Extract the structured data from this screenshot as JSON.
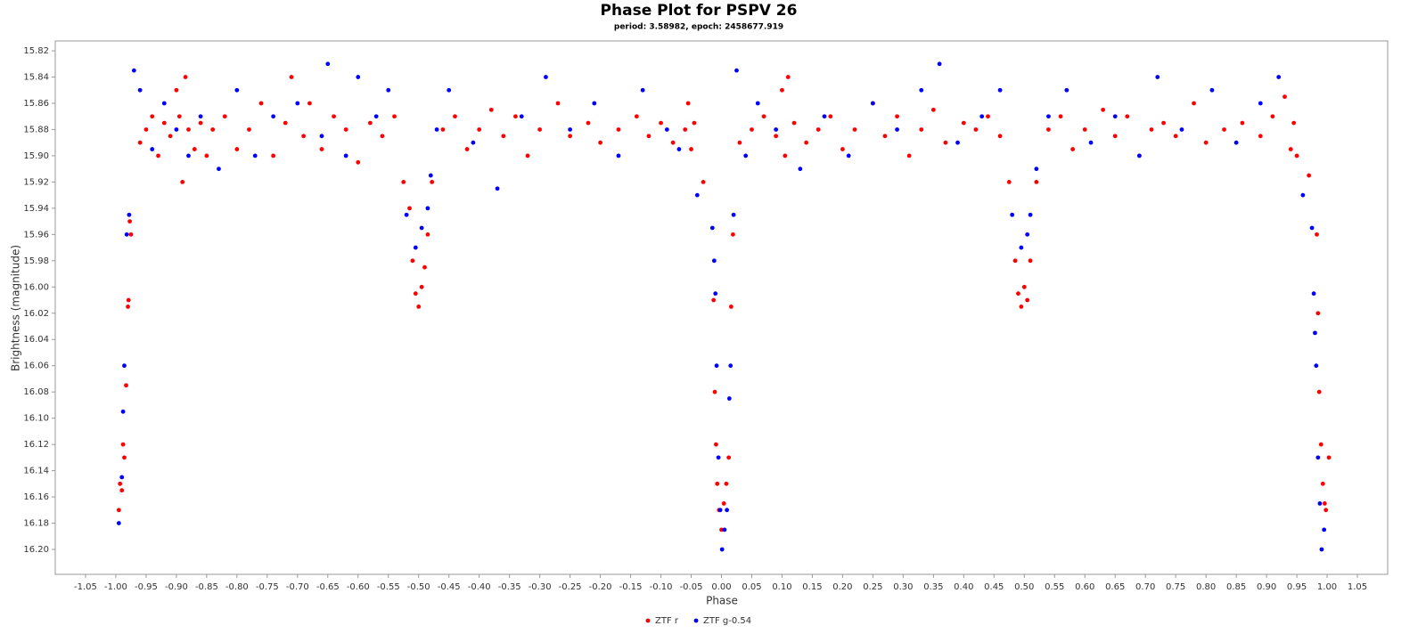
{
  "chart_data": {
    "type": "scatter",
    "title": "Phase Plot for PSPV 26",
    "subtitle": "period: 3.58982, epoch: 2458677.919",
    "x_label": "Phase",
    "y_label": "Brightness (magnitude)",
    "xlim": [
      -1.1,
      1.1
    ],
    "ylim": [
      15.8125,
      16.219
    ],
    "y_inverted": true,
    "grid": false,
    "legend": "bottom",
    "xticks": [
      -1.05,
      {
        "value": -1.0,
        "label": "-1.00"
      },
      -0.95,
      {
        "value": -0.9,
        "label": "-0.90"
      },
      -0.85,
      {
        "value": -0.8,
        "label": "-0.80"
      },
      -0.75,
      {
        "value": -0.7,
        "label": "-0.70"
      },
      -0.65,
      {
        "value": -0.6,
        "label": "-0.60"
      },
      -0.55,
      {
        "value": -0.5,
        "label": "-0.50"
      },
      -0.45,
      {
        "value": -0.4,
        "label": "-0.40"
      },
      -0.35,
      {
        "value": -0.3,
        "label": "-0.30"
      },
      -0.25,
      {
        "value": -0.2,
        "label": "-0.20"
      },
      -0.15,
      {
        "value": -0.1,
        "label": "-0.10"
      },
      -0.05,
      {
        "value": 0,
        "label": "0.00"
      },
      0.05,
      {
        "value": 0.1,
        "label": "0.10"
      },
      0.15,
      {
        "value": 0.2,
        "label": "0.20"
      },
      0.25,
      {
        "value": 0.3,
        "label": "0.30"
      },
      0.35,
      {
        "value": 0.4,
        "label": "0.40"
      },
      0.45,
      {
        "value": 0.5,
        "label": "0.50"
      },
      0.55,
      {
        "value": 0.6,
        "label": "0.60"
      },
      0.65,
      {
        "value": 0.7,
        "label": "0.70"
      },
      0.75,
      {
        "value": 0.8,
        "label": "0.80"
      },
      0.85,
      {
        "value": 0.9,
        "label": "0.90"
      },
      0.95,
      {
        "value": 1.0,
        "label": "1.00"
      },
      1.05
    ],
    "yticks": [
      15.82,
      15.84,
      15.86,
      15.88,
      {
        "value": 15.9,
        "label": "15.90"
      },
      15.92,
      15.94,
      15.96,
      15.98,
      {
        "value": 16.0,
        "label": "16.00"
      },
      16.02,
      16.04,
      16.06,
      16.08,
      {
        "value": 16.1,
        "label": "16.10"
      },
      16.12,
      16.14,
      16.16,
      16.18,
      {
        "value": 16.2,
        "label": "16.20"
      }
    ],
    "series": [
      {
        "name": "ZTF r",
        "color": "#ff0000",
        "x": [
          -0.995,
          -0.993,
          -0.99,
          -0.988,
          -0.986,
          -0.983,
          -0.98,
          -0.979,
          -0.977,
          -0.975,
          -0.96,
          -0.95,
          -0.94,
          -0.93,
          -0.92,
          -0.91,
          -0.9,
          -0.895,
          -0.89,
          -0.885,
          -0.88,
          -0.87,
          -0.86,
          -0.85,
          -0.84,
          -0.82,
          -0.8,
          -0.78,
          -0.76,
          -0.74,
          -0.72,
          -0.71,
          -0.69,
          -0.68,
          -0.66,
          -0.64,
          -0.62,
          -0.6,
          -0.58,
          -0.56,
          -0.54,
          -0.525,
          -0.515,
          -0.51,
          -0.505,
          -0.5,
          -0.495,
          -0.49,
          -0.485,
          -0.478,
          -0.46,
          -0.44,
          -0.42,
          -0.4,
          -0.38,
          -0.36,
          -0.34,
          -0.32,
          -0.3,
          -0.27,
          -0.25,
          -0.22,
          -0.2,
          -0.17,
          -0.14,
          -0.12,
          -0.1,
          -0.08,
          -0.06,
          -0.055,
          -0.05,
          -0.045,
          -0.03,
          -0.013,
          -0.011,
          -0.009,
          -0.007,
          -0.004,
          0,
          0.004,
          0.008,
          0.012,
          0.016,
          0.019,
          0.03,
          0.05,
          0.07,
          0.09,
          0.1,
          0.105,
          0.11,
          0.12,
          0.14,
          0.16,
          0.18,
          0.2,
          0.22,
          0.25,
          0.27,
          0.29,
          0.31,
          0.33,
          0.35,
          0.37,
          0.4,
          0.42,
          0.44,
          0.46,
          0.475,
          0.485,
          0.49,
          0.495,
          0.5,
          0.505,
          0.51,
          0.52,
          0.54,
          0.56,
          0.58,
          0.6,
          0.63,
          0.65,
          0.67,
          0.69,
          0.71,
          0.73,
          0.75,
          0.78,
          0.8,
          0.83,
          0.86,
          0.89,
          0.91,
          0.93,
          0.94,
          0.945,
          0.95,
          0.97,
          0.983,
          0.985,
          0.987,
          0.99,
          0.993,
          0.996,
          0.998,
          1.003
        ],
        "y": [
          16.17,
          16.15,
          16.155,
          16.12,
          16.13,
          16.075,
          16.015,
          16.01,
          15.95,
          15.96,
          15.89,
          15.88,
          15.87,
          15.9,
          15.875,
          15.885,
          15.85,
          15.87,
          15.92,
          15.84,
          15.88,
          15.895,
          15.875,
          15.9,
          15.88,
          15.87,
          15.895,
          15.88,
          15.86,
          15.9,
          15.875,
          15.84,
          15.885,
          15.86,
          15.895,
          15.87,
          15.88,
          15.905,
          15.875,
          15.885,
          15.87,
          15.92,
          15.94,
          15.98,
          16.005,
          16.015,
          16.0,
          15.985,
          15.96,
          15.92,
          15.88,
          15.87,
          15.895,
          15.88,
          15.865,
          15.885,
          15.87,
          15.9,
          15.88,
          15.86,
          15.885,
          15.875,
          15.89,
          15.88,
          15.87,
          15.885,
          15.875,
          15.89,
          15.88,
          15.86,
          15.895,
          15.875,
          15.92,
          16.01,
          16.08,
          16.12,
          16.15,
          16.17,
          16.185,
          16.165,
          16.15,
          16.13,
          16.015,
          15.96,
          15.89,
          15.88,
          15.87,
          15.885,
          15.85,
          15.9,
          15.84,
          15.875,
          15.89,
          15.88,
          15.87,
          15.895,
          15.88,
          15.86,
          15.885,
          15.87,
          15.9,
          15.88,
          15.865,
          15.89,
          15.875,
          15.88,
          15.87,
          15.885,
          15.92,
          15.98,
          16.005,
          16.015,
          16.0,
          16.01,
          15.98,
          15.92,
          15.88,
          15.87,
          15.895,
          15.88,
          15.865,
          15.885,
          15.87,
          15.9,
          15.88,
          15.875,
          15.885,
          15.86,
          15.89,
          15.88,
          15.875,
          15.885,
          15.87,
          15.855,
          15.895,
          15.875,
          15.9,
          15.915,
          15.96,
          16.02,
          16.08,
          16.12,
          16.15,
          16.165,
          16.17,
          16.13
        ]
      },
      {
        "name": "ZTF g-0.54",
        "color": "#0000ff",
        "x": [
          -0.995,
          -0.99,
          -0.988,
          -0.986,
          -0.982,
          -0.978,
          -0.97,
          -0.96,
          -0.94,
          -0.92,
          -0.9,
          -0.88,
          -0.86,
          -0.83,
          -0.8,
          -0.77,
          -0.74,
          -0.7,
          -0.66,
          -0.65,
          -0.62,
          -0.6,
          -0.57,
          -0.55,
          -0.52,
          -0.505,
          -0.495,
          -0.485,
          -0.48,
          -0.47,
          -0.45,
          -0.41,
          -0.37,
          -0.33,
          -0.29,
          -0.25,
          -0.21,
          -0.17,
          -0.13,
          -0.09,
          -0.07,
          -0.04,
          -0.015,
          -0.012,
          -0.01,
          -0.008,
          -0.005,
          -0.002,
          0.001,
          0.005,
          0.009,
          0.013,
          0.015,
          0.02,
          0.025,
          0.04,
          0.06,
          0.09,
          0.13,
          0.17,
          0.21,
          0.25,
          0.29,
          0.33,
          0.36,
          0.39,
          0.43,
          0.46,
          0.48,
          0.495,
          0.505,
          0.51,
          0.52,
          0.54,
          0.57,
          0.61,
          0.65,
          0.69,
          0.72,
          0.76,
          0.81,
          0.85,
          0.89,
          0.92,
          0.96,
          0.975,
          0.978,
          0.98,
          0.982,
          0.985,
          0.988,
          0.991,
          0.995
        ],
        "y": [
          16.18,
          16.145,
          16.095,
          16.06,
          15.96,
          15.945,
          15.835,
          15.85,
          15.895,
          15.86,
          15.88,
          15.9,
          15.87,
          15.91,
          15.85,
          15.9,
          15.87,
          15.86,
          15.885,
          15.83,
          15.9,
          15.84,
          15.87,
          15.85,
          15.945,
          15.97,
          15.955,
          15.94,
          15.915,
          15.88,
          15.85,
          15.89,
          15.925,
          15.87,
          15.84,
          15.88,
          15.86,
          15.9,
          15.85,
          15.88,
          15.895,
          15.93,
          15.955,
          15.98,
          16.005,
          16.06,
          16.13,
          16.17,
          16.2,
          16.185,
          16.17,
          16.085,
          16.06,
          15.945,
          15.835,
          15.9,
          15.86,
          15.88,
          15.91,
          15.87,
          15.9,
          15.86,
          15.88,
          15.85,
          15.83,
          15.89,
          15.87,
          15.85,
          15.945,
          15.97,
          15.96,
          15.945,
          15.91,
          15.87,
          15.85,
          15.89,
          15.87,
          15.9,
          15.84,
          15.88,
          15.85,
          15.89,
          15.86,
          15.84,
          15.93,
          15.955,
          16.005,
          16.035,
          16.06,
          16.13,
          16.165,
          16.2,
          16.185
        ]
      }
    ]
  }
}
